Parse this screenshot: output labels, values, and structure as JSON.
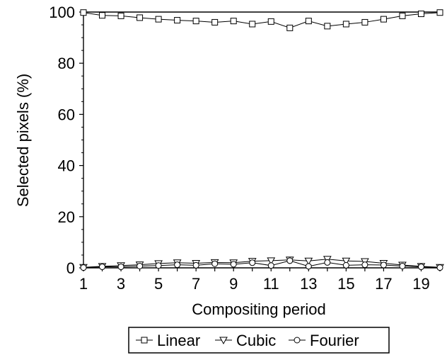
{
  "chart_data": {
    "type": "line",
    "xlabel": "Compositing period",
    "ylabel": "Selected pixels (%)",
    "xlim": [
      1,
      20
    ],
    "ylim": [
      0,
      100
    ],
    "x_ticks": [
      1,
      3,
      5,
      7,
      9,
      11,
      13,
      15,
      17,
      19
    ],
    "y_ticks": [
      0,
      20,
      40,
      60,
      80,
      100
    ],
    "x": [
      1,
      2,
      3,
      4,
      5,
      6,
      7,
      8,
      9,
      10,
      11,
      12,
      13,
      14,
      15,
      16,
      17,
      18,
      19,
      20
    ],
    "legend_position": "bottom",
    "series": [
      {
        "name": "Linear",
        "marker": "square",
        "values": [
          99.8,
          98.7,
          98.5,
          97.8,
          97.2,
          96.8,
          96.5,
          96.0,
          96.5,
          95.3,
          96.3,
          93.8,
          96.5,
          94.5,
          95.3,
          96.0,
          97.2,
          98.5,
          99.3,
          99.8
        ]
      },
      {
        "name": "Cubic",
        "marker": "triangle-down",
        "values": [
          0.2,
          0.6,
          0.9,
          1.2,
          1.7,
          2.0,
          1.8,
          2.1,
          2.0,
          2.6,
          2.8,
          3.1,
          2.7,
          3.4,
          2.7,
          2.5,
          1.8,
          1.1,
          0.6,
          0.2
        ]
      },
      {
        "name": "Fourier",
        "marker": "circle",
        "values": [
          0.1,
          0.4,
          0.4,
          0.7,
          0.9,
          1.2,
          1.0,
          1.6,
          1.4,
          2.0,
          0.9,
          2.8,
          0.6,
          2.1,
          1.0,
          1.2,
          1.1,
          0.7,
          0.4,
          0.1
        ]
      }
    ]
  }
}
